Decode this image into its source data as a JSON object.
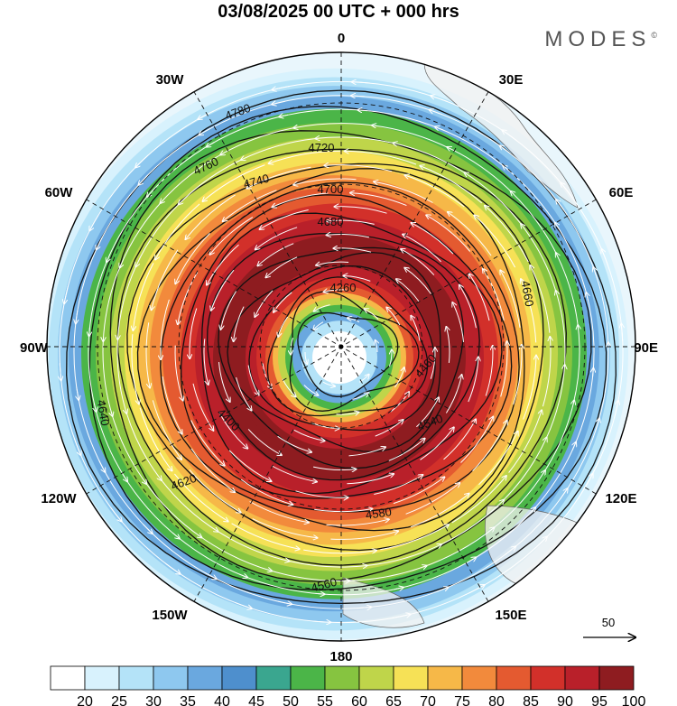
{
  "title": "03/08/2025  00 UTC  + 000 hrs",
  "brand": "MODES",
  "brand_mark": "©",
  "longitude_labels": [
    "0",
    "30E",
    "60E",
    "90E",
    "120E",
    "150E",
    "180",
    "150W",
    "120W",
    "90W",
    "60W",
    "30W"
  ],
  "reference_vector_label": "50",
  "colorbar": {
    "labels": [
      "20",
      "25",
      "30",
      "35",
      "40",
      "45",
      "50",
      "55",
      "60",
      "65",
      "70",
      "75",
      "80",
      "85",
      "90",
      "95",
      "100"
    ],
    "colors": [
      "#ffffff",
      "#d8f2fd",
      "#b4e3f8",
      "#8ec8ef",
      "#6aa8df",
      "#4e8fcd",
      "#3aa68f",
      "#4bb548",
      "#86c440",
      "#bfd54a",
      "#f6e156",
      "#f6b848",
      "#f28a3c",
      "#e45a30",
      "#d2302a",
      "#b9202a",
      "#8e1c20"
    ]
  },
  "contours": [
    {
      "value": "4780"
    },
    {
      "value": "4760"
    },
    {
      "value": "4740"
    },
    {
      "value": "4720"
    },
    {
      "value": "4700"
    },
    {
      "value": "4680"
    },
    {
      "value": "4660"
    },
    {
      "value": "4640"
    },
    {
      "value": "4620"
    },
    {
      "value": "4580"
    },
    {
      "value": "4560"
    },
    {
      "value": "4540"
    },
    {
      "value": "4460"
    },
    {
      "value": "4400"
    },
    {
      "value": "4260"
    }
  ]
}
